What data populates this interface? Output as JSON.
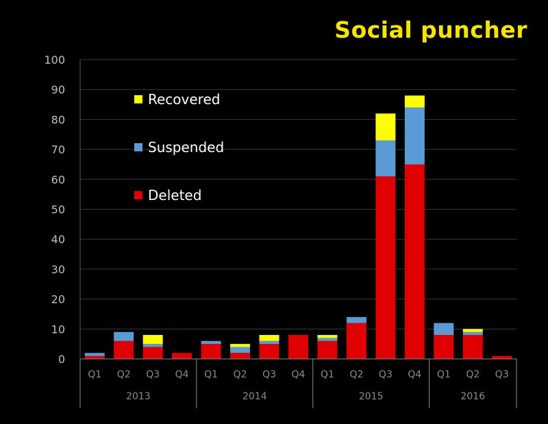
{
  "logo_text": "Social puncher",
  "chart_data": {
    "type": "bar",
    "stacked": true,
    "title": "",
    "xlabel": "",
    "ylabel": "",
    "ylim": [
      0,
      100
    ],
    "yticks": [
      0,
      10,
      20,
      30,
      40,
      50,
      60,
      70,
      80,
      90,
      100
    ],
    "grid": true,
    "legend_position": "top-left",
    "categories": [
      "Q1",
      "Q2",
      "Q3",
      "Q4",
      "Q1",
      "Q2",
      "Q3",
      "Q4",
      "Q1",
      "Q2",
      "Q3",
      "Q4",
      "Q1",
      "Q2",
      "Q3"
    ],
    "groups": [
      {
        "label": "2013",
        "count": 4
      },
      {
        "label": "2014",
        "count": 4
      },
      {
        "label": "2015",
        "count": 4
      },
      {
        "label": "2016",
        "count": 3
      }
    ],
    "series": [
      {
        "name": "Deleted",
        "color": "#e00000",
        "values": [
          1,
          6,
          4,
          2,
          5,
          2,
          5,
          8,
          6,
          12,
          61,
          65,
          8,
          8,
          1
        ]
      },
      {
        "name": "Suspended",
        "color": "#5b9bd5",
        "values": [
          1,
          3,
          1,
          0,
          1,
          2,
          1,
          0,
          1,
          2,
          12,
          19,
          4,
          1,
          0
        ]
      },
      {
        "name": "Recovered",
        "color": "#ffff00",
        "values": [
          0,
          0,
          3,
          0,
          0,
          1,
          2,
          0,
          1,
          0,
          9,
          4,
          0,
          1,
          0
        ]
      }
    ],
    "legend": [
      {
        "name": "Recovered",
        "color": "#ffff00"
      },
      {
        "name": "Suspended",
        "color": "#5b9bd5"
      },
      {
        "name": "Deleted",
        "color": "#e00000"
      }
    ]
  }
}
